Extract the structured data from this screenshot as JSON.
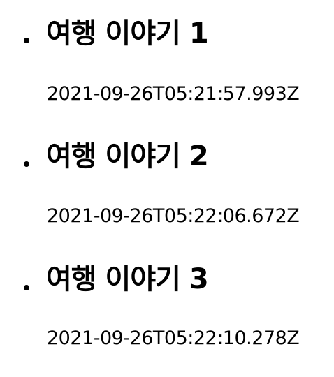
{
  "posts": [
    {
      "title": "여행 이야기 1",
      "date": "2021-09-26T05:21:57.993Z"
    },
    {
      "title": "여행 이야기 2",
      "date": "2021-09-26T05:22:06.672Z"
    },
    {
      "title": "여행 이야기 3",
      "date": "2021-09-26T05:22:10.278Z"
    }
  ]
}
